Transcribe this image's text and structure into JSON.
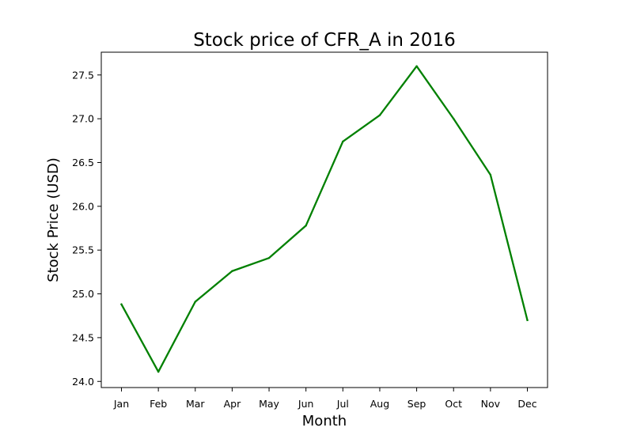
{
  "chart_data": {
    "type": "line",
    "title": "Stock price of CFR_A in 2016",
    "xlabel": "Month",
    "ylabel": "Stock Price (USD)",
    "categories": [
      "Jan",
      "Feb",
      "Mar",
      "Apr",
      "May",
      "Jun",
      "Jul",
      "Aug",
      "Sep",
      "Oct",
      "Nov",
      "Dec"
    ],
    "series": [
      {
        "values": [
          24.88,
          24.11,
          24.91,
          25.26,
          25.41,
          25.78,
          26.74,
          27.04,
          27.6,
          27.0,
          26.36,
          24.7
        ],
        "color": "#008000"
      }
    ],
    "ylim": [
      23.93,
      27.76
    ],
    "yticks": [
      "24.0",
      "24.5",
      "25.0",
      "25.5",
      "26.0",
      "26.5",
      "27.0",
      "27.5"
    ],
    "grid": false,
    "legend": false
  }
}
